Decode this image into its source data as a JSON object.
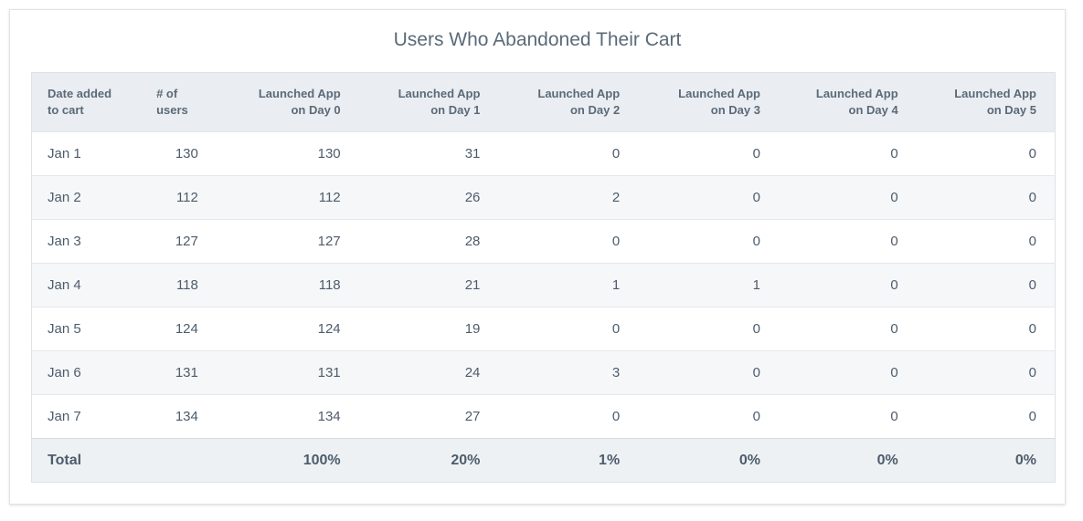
{
  "chart_data": {
    "type": "table",
    "title": "Users Who Abandoned Their Cart",
    "columns": [
      [
        "Date added",
        "to cart"
      ],
      [
        "# of users",
        ""
      ],
      [
        "Launched App",
        "on Day 0"
      ],
      [
        "Launched App",
        "on Day 1"
      ],
      [
        "Launched App",
        "on Day 2"
      ],
      [
        "Launched App",
        "on Day 3"
      ],
      [
        "Launched App",
        "on Day 4"
      ],
      [
        "Launched App",
        "on Day 5"
      ]
    ],
    "rows": [
      [
        "Jan 1",
        "130",
        "130",
        "31",
        "0",
        "0",
        "0",
        "0"
      ],
      [
        "Jan 2",
        "112",
        "112",
        "26",
        "2",
        "0",
        "0",
        "0"
      ],
      [
        "Jan 3",
        "127",
        "127",
        "28",
        "0",
        "0",
        "0",
        "0"
      ],
      [
        "Jan 4",
        "118",
        "118",
        "21",
        "1",
        "1",
        "0",
        "0"
      ],
      [
        "Jan 5",
        "124",
        "124",
        "19",
        "0",
        "0",
        "0",
        "0"
      ],
      [
        "Jan 6",
        "131",
        "131",
        "24",
        "3",
        "0",
        "0",
        "0"
      ],
      [
        "Jan 7",
        "134",
        "134",
        "27",
        "0",
        "0",
        "0",
        "0"
      ]
    ],
    "total_row": [
      "Total",
      "",
      "100%",
      "20%",
      "1%",
      "0%",
      "0%",
      "0%"
    ]
  }
}
